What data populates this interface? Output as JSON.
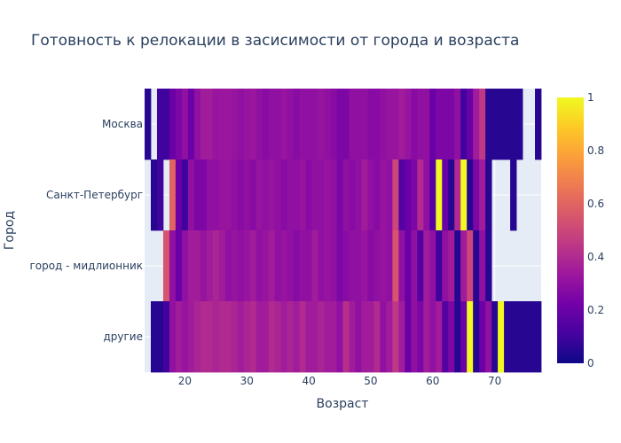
{
  "chart_data": {
    "type": "heatmap",
    "title": "Готовность к релокации в засисимости от города и возраста",
    "xlabel": "Возраст",
    "ylabel": "Город",
    "x_range": [
      13.5,
      77.5
    ],
    "x_ticks": [
      20,
      30,
      40,
      50,
      60,
      70
    ],
    "categories_y": [
      "Москва",
      "Санкт-Петербург",
      "город - мидлионник",
      "другие"
    ],
    "colorscale_name": "Plasma",
    "colorbar_ticks": [
      0,
      0.2,
      0.4,
      0.6,
      0.8,
      1
    ],
    "z_range": [
      0,
      1
    ],
    "x_start": 14,
    "rows": [
      [
        0.05,
        null,
        0.1,
        0.1,
        0.2,
        0.25,
        0.3,
        0.2,
        0.3,
        0.35,
        0.35,
        0.32,
        0.33,
        0.33,
        0.32,
        0.3,
        0.32,
        0.33,
        0.3,
        0.28,
        0.3,
        0.3,
        0.32,
        0.3,
        0.28,
        0.3,
        0.3,
        0.3,
        0.32,
        0.3,
        0.28,
        0.25,
        0.25,
        0.3,
        0.3,
        0.3,
        0.28,
        0.28,
        0.3,
        0.32,
        0.32,
        0.35,
        0.32,
        0.28,
        0.3,
        0.3,
        0.2,
        0.25,
        0.25,
        0.25,
        0.3,
        0.1,
        0.2,
        0.35,
        0.45,
        0.05,
        0.05,
        0.05,
        0.05,
        0.05,
        0.05,
        null,
        null,
        0.05
      ],
      [
        null,
        0.05,
        0.1,
        null,
        0.6,
        0.2,
        0.1,
        0.3,
        0.25,
        0.25,
        0.3,
        0.3,
        0.32,
        0.32,
        0.3,
        0.28,
        0.3,
        0.28,
        0.32,
        0.3,
        0.32,
        0.3,
        0.28,
        0.3,
        0.3,
        0.32,
        0.28,
        0.3,
        0.3,
        0.32,
        0.3,
        0.25,
        0.3,
        0.28,
        0.3,
        0.35,
        0.3,
        0.28,
        0.32,
        0.3,
        0.5,
        0.15,
        0.2,
        0.25,
        0.4,
        0.3,
        0.15,
        1.0,
        0.2,
        0.05,
        0.4,
        1.0,
        0.05,
        0.25,
        0.35,
        0.05,
        null,
        null,
        null,
        0.05,
        null,
        null,
        null,
        null
      ],
      [
        null,
        null,
        null,
        0.55,
        0.3,
        0.2,
        0.3,
        0.35,
        0.35,
        0.32,
        0.35,
        0.38,
        0.35,
        0.3,
        0.32,
        0.3,
        0.32,
        0.35,
        0.3,
        0.32,
        0.35,
        0.3,
        0.32,
        0.3,
        0.28,
        0.3,
        0.3,
        0.35,
        0.3,
        0.32,
        0.3,
        0.25,
        0.28,
        0.3,
        0.3,
        0.32,
        0.28,
        0.3,
        0.32,
        0.3,
        0.55,
        0.3,
        0.2,
        0.3,
        0.15,
        0.35,
        0.3,
        0.1,
        0.3,
        0.35,
        0.05,
        0.35,
        0.5,
        0.05,
        0.3,
        0.05,
        null,
        null,
        null,
        null,
        null,
        null,
        null,
        null
      ],
      [
        null,
        0.05,
        0.05,
        0.1,
        0.3,
        0.35,
        0.32,
        0.35,
        0.38,
        0.4,
        0.4,
        0.38,
        0.4,
        0.4,
        0.38,
        0.35,
        0.38,
        0.4,
        0.35,
        0.35,
        0.4,
        0.38,
        0.35,
        0.38,
        0.35,
        0.4,
        0.35,
        0.35,
        0.38,
        0.35,
        0.35,
        0.3,
        0.42,
        0.35,
        0.3,
        0.35,
        0.35,
        0.4,
        0.3,
        0.35,
        0.45,
        0.35,
        0.2,
        0.3,
        0.25,
        0.35,
        0.3,
        0.35,
        0.15,
        0.25,
        0.05,
        0.2,
        1.0,
        0.05,
        0.2,
        0.3,
        0.05,
        1.0,
        0.05,
        0.05,
        0.05,
        0.05,
        0.05,
        0.05
      ]
    ]
  }
}
